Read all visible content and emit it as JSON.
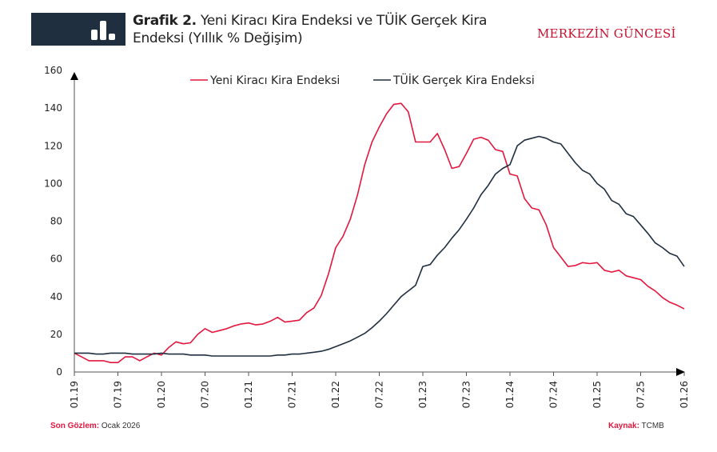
{
  "header": {
    "title_bold": "Grafik 2.",
    "title_rest": " Yeni Kiracı Kira Endeksi ve TÜİK Gerçek Kira Endeksi (Yıllık % Değişim)",
    "brand": "MERKEZİN GÜNCESİ",
    "icon": "bar-chart-icon"
  },
  "footer": {
    "obs_label": "Son Gözlem:",
    "obs_value": " Ocak 2026",
    "source_label": "Kaynak:",
    "source_value": " TCMB"
  },
  "chart_data": {
    "type": "line",
    "title": "",
    "xlabel": "",
    "ylabel": "",
    "ylim": [
      0,
      160
    ],
    "yticks": [
      0,
      20,
      40,
      60,
      80,
      100,
      120,
      140,
      160
    ],
    "xticks": [
      "01.19",
      "07.19",
      "01.20",
      "07.20",
      "01.21",
      "07.21",
      "01.22",
      "07.22",
      "01.23",
      "07.23",
      "01.24",
      "07.24",
      "01.25",
      "07.25",
      "01.26"
    ],
    "x_start": "2019-01",
    "x_end": "2026-01",
    "frequency": "monthly",
    "grid": false,
    "legend": "top",
    "series": [
      {
        "name": "Yeni Kiracı Kira Endeksi",
        "color": "#e3173e",
        "values": [
          10,
          8,
          6,
          6,
          6,
          5,
          5,
          8,
          8,
          6,
          8,
          10,
          9,
          13,
          16,
          15,
          15.5,
          20,
          23,
          21,
          22,
          23,
          24.5,
          25.5,
          26,
          25,
          25.5,
          27,
          29,
          26.5,
          27,
          27.5,
          31.5,
          34,
          40.5,
          52,
          66,
          72,
          81,
          94,
          110,
          122,
          130,
          137,
          142,
          142.5,
          138,
          122,
          122,
          122,
          126.5,
          118,
          108,
          109,
          116,
          123.5,
          124.5,
          123,
          118,
          117,
          105,
          104,
          92,
          87,
          86,
          78,
          66,
          61,
          56,
          56.5,
          58,
          57.5,
          58,
          54,
          53,
          54,
          51,
          50,
          49,
          45.5,
          43,
          39.5,
          37,
          35.5,
          33.5
        ]
      },
      {
        "name": "TÜİK Gerçek Kira Endeksi",
        "color": "#1f2f40",
        "values": [
          10,
          10,
          10,
          9.5,
          9.5,
          10,
          10,
          10,
          9.5,
          9.5,
          9.5,
          9.5,
          10,
          9.5,
          9.5,
          9.5,
          9,
          9,
          9,
          8.5,
          8.5,
          8.5,
          8.5,
          8.5,
          8.5,
          8.5,
          8.5,
          8.5,
          9,
          9,
          9.5,
          9.5,
          10,
          10.5,
          11,
          12,
          13.5,
          15,
          16.5,
          18.5,
          20.5,
          23.5,
          27,
          31,
          35.5,
          40,
          43,
          46,
          56,
          57,
          62,
          66,
          71,
          75.5,
          81,
          87,
          94,
          99,
          105,
          108,
          110,
          120,
          123,
          124,
          125,
          124,
          122,
          121,
          116,
          111,
          107,
          105,
          100,
          97,
          91,
          89,
          84,
          82.5,
          78,
          73.5,
          68.5,
          66,
          63,
          61.5,
          56
        ]
      }
    ]
  }
}
